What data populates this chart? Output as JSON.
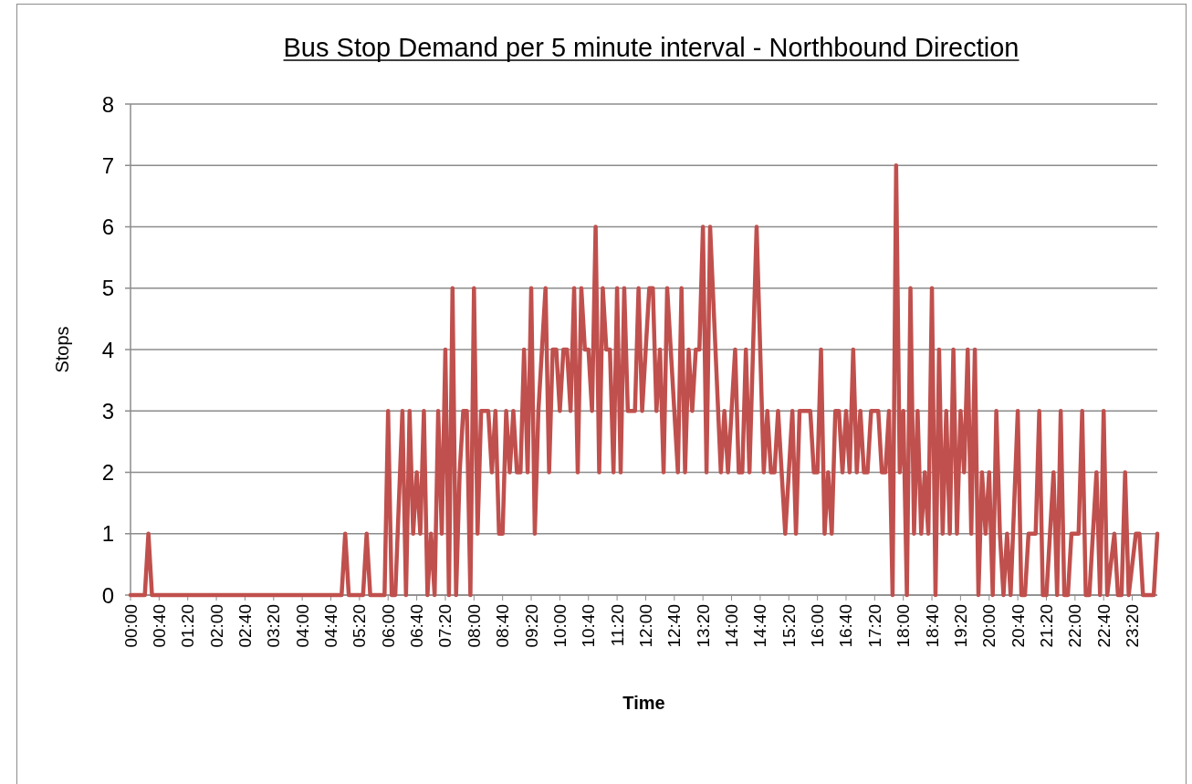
{
  "chart_data": {
    "type": "line",
    "title": "Bus Stop Demand per 5 minute interval - Northbound Direction",
    "xlabel": "Time",
    "ylabel": "Stops",
    "xlim": [
      0,
      23.9167
    ],
    "ylim": [
      0,
      8
    ],
    "yticks": [
      0,
      1,
      2,
      3,
      4,
      5,
      6,
      7,
      8
    ],
    "xticks": [
      {
        "value": 0,
        "label": "00:00"
      },
      {
        "value": 0.6667,
        "label": "00:40"
      },
      {
        "value": 1.3333,
        "label": "01:20"
      },
      {
        "value": 2,
        "label": "02:00"
      },
      {
        "value": 2.6667,
        "label": "02:40"
      },
      {
        "value": 3.3333,
        "label": "03:20"
      },
      {
        "value": 4,
        "label": "04:00"
      },
      {
        "value": 4.6667,
        "label": "04:40"
      },
      {
        "value": 5.3333,
        "label": "05:20"
      },
      {
        "value": 6,
        "label": "06:00"
      },
      {
        "value": 6.6667,
        "label": "06:40"
      },
      {
        "value": 7.3333,
        "label": "07:20"
      },
      {
        "value": 8,
        "label": "08:00"
      },
      {
        "value": 8.6667,
        "label": "08:40"
      },
      {
        "value": 9.3333,
        "label": "09:20"
      },
      {
        "value": 10,
        "label": "10:00"
      },
      {
        "value": 10.6667,
        "label": "10:40"
      },
      {
        "value": 11.3333,
        "label": "11:20"
      },
      {
        "value": 12,
        "label": "12:00"
      },
      {
        "value": 12.6667,
        "label": "12:40"
      },
      {
        "value": 13.3333,
        "label": "13:20"
      },
      {
        "value": 14,
        "label": "14:00"
      },
      {
        "value": 14.6667,
        "label": "14:40"
      },
      {
        "value": 15.3333,
        "label": "15:20"
      },
      {
        "value": 16,
        "label": "16:00"
      },
      {
        "value": 16.6667,
        "label": "16:40"
      },
      {
        "value": 17.3333,
        "label": "17:20"
      },
      {
        "value": 18,
        "label": "18:00"
      },
      {
        "value": 18.6667,
        "label": "18:40"
      },
      {
        "value": 19.3333,
        "label": "19:20"
      },
      {
        "value": 20,
        "label": "20:00"
      },
      {
        "value": 20.6667,
        "label": "20:40"
      },
      {
        "value": 21.3333,
        "label": "21:20"
      },
      {
        "value": 22,
        "label": "22:00"
      },
      {
        "value": 22.6667,
        "label": "22:40"
      },
      {
        "value": 23.3333,
        "label": "23:20"
      }
    ],
    "grid": "y",
    "marker": "none",
    "line_style": "solid",
    "x": [
      0,
      0.3333,
      0.4167,
      0.5,
      4.9167,
      5,
      5.0833,
      5.4167,
      5.5,
      5.5833,
      5.9167,
      6,
      6.0833,
      6.1667,
      6.3333,
      6.4167,
      6.5,
      6.5833,
      6.6667,
      6.75,
      6.8333,
      6.9167,
      7,
      7.0833,
      7.1667,
      7.25,
      7.3333,
      7.4167,
      7.5,
      7.5833,
      7.6667,
      7.75,
      7.8333,
      7.9167,
      8,
      8.0833,
      8.1667,
      8.3333,
      8.4167,
      8.5,
      8.5833,
      8.6667,
      8.75,
      8.8333,
      8.9167,
      9,
      9.0833,
      9.1667,
      9.25,
      9.3333,
      9.4167,
      9.5,
      9.5833,
      9.6667,
      9.75,
      9.8333,
      9.9167,
      10,
      10.0833,
      10.1667,
      10.25,
      10.3333,
      10.4167,
      10.5,
      10.5833,
      10.6667,
      10.75,
      10.8333,
      10.9167,
      11,
      11.0833,
      11.1667,
      11.25,
      11.3333,
      11.4167,
      11.5,
      11.5833,
      11.75,
      11.8333,
      11.9167,
      12,
      12.0833,
      12.1667,
      12.25,
      12.3333,
      12.4167,
      12.5,
      12.75,
      12.8333,
      12.9167,
      13,
      13.0833,
      13.1667,
      13.25,
      13.3333,
      13.4167,
      13.5,
      13.75,
      13.8333,
      13.9167,
      14.0833,
      14.1667,
      14.25,
      14.3333,
      14.4167,
      14.5833,
      14.75,
      14.8333,
      14.9167,
      15,
      15.0833,
      15.25,
      15.4167,
      15.5,
      15.5833,
      15.8333,
      15.9167,
      16,
      16.0833,
      16.1667,
      16.25,
      16.3333,
      16.4167,
      16.5,
      16.5833,
      16.6667,
      16.75,
      16.8333,
      16.9167,
      17,
      17.0833,
      17.1667,
      17.25,
      17.4167,
      17.5,
      17.5833,
      17.6667,
      17.75,
      17.8333,
      17.9167,
      18,
      18.0833,
      18.1667,
      18.25,
      18.3333,
      18.4167,
      18.5,
      18.5833,
      18.6667,
      18.75,
      18.8333,
      18.9167,
      19,
      19.0833,
      19.1667,
      19.25,
      19.3333,
      19.4167,
      19.5,
      19.5833,
      19.6667,
      19.75,
      19.8333,
      19.9167,
      20,
      20.0833,
      20.1667,
      20.25,
      20.3333,
      20.4167,
      20.5,
      20.6667,
      20.75,
      20.8333,
      20.9167,
      21.0833,
      21.1667,
      21.25,
      21.3333,
      21.5,
      21.5833,
      21.6667,
      21.75,
      21.8333,
      21.9167,
      22.0833,
      22.1667,
      22.25,
      22.3333,
      22.5,
      22.5833,
      22.6667,
      22.75,
      22.9167,
      23,
      23.0833,
      23.1667,
      23.25,
      23.4167,
      23.5,
      23.5833,
      23.8333,
      23.9167
    ],
    "series": [
      {
        "color": "#c0504d",
        "values": [
          0,
          0,
          1,
          0,
          0,
          1,
          0,
          0,
          1,
          0,
          0,
          3,
          0,
          0,
          3,
          0,
          3,
          1,
          2,
          1,
          3,
          0,
          1,
          0,
          3,
          1,
          4,
          0,
          5,
          0,
          2,
          3,
          3,
          0,
          5,
          1,
          3,
          3,
          2,
          3,
          1,
          1,
          3,
          2,
          3,
          2,
          2,
          4,
          2,
          5,
          1,
          3,
          4,
          5,
          2,
          4,
          4,
          3,
          4,
          4,
          3,
          5,
          2,
          5,
          4,
          4,
          3,
          6,
          2,
          5,
          4,
          4,
          2,
          5,
          2,
          5,
          3,
          3,
          5,
          3,
          4,
          5,
          5,
          3,
          4,
          2,
          5,
          2,
          5,
          2,
          4,
          3,
          4,
          4,
          6,
          2,
          6,
          2,
          3,
          2,
          4,
          2,
          2,
          4,
          2,
          6,
          2,
          3,
          2,
          2,
          3,
          1,
          3,
          1,
          3,
          3,
          2,
          2,
          4,
          1,
          2,
          1,
          3,
          3,
          2,
          3,
          2,
          4,
          2,
          3,
          2,
          2,
          3,
          3,
          2,
          2,
          3,
          0,
          7,
          2,
          3,
          0,
          5,
          1,
          3,
          1,
          2,
          1,
          5,
          0,
          4,
          1,
          3,
          1,
          4,
          1,
          3,
          2,
          4,
          1,
          4,
          0,
          2,
          1,
          2,
          0,
          3,
          1,
          0,
          1,
          0,
          3,
          0,
          0,
          1,
          1,
          3,
          0,
          0,
          2,
          0,
          3,
          0,
          0,
          1,
          1,
          3,
          0,
          0,
          2,
          0,
          3,
          0,
          1,
          0,
          0,
          2,
          0,
          1,
          1,
          0,
          0,
          1
        ]
      }
    ]
  }
}
